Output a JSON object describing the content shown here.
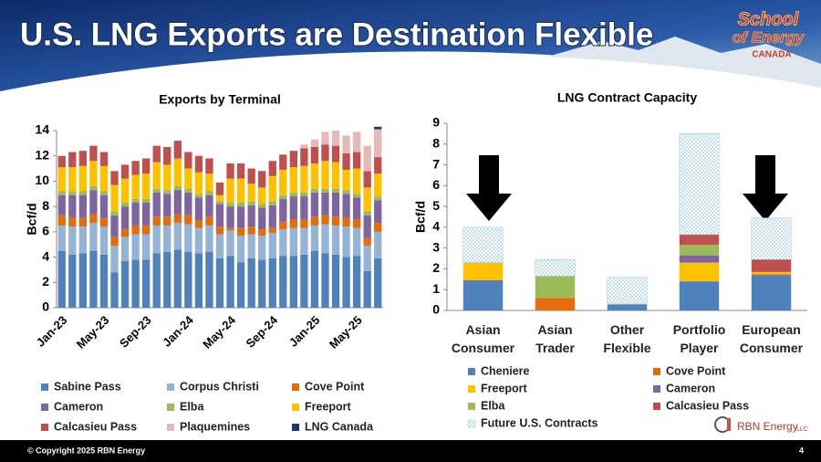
{
  "title": "U.S. LNG Exports are Destination Flexible",
  "logo": {
    "line1": "School",
    "line2": "of Energy",
    "line3": "CANADA"
  },
  "brand": {
    "name": "RBN Energy",
    "suffix": "LLC"
  },
  "footer": {
    "copyright": "© Copyright 2025 RBN Energy",
    "page": "4"
  },
  "chart_data": [
    {
      "type": "stacked_bar",
      "title": "Exports by Terminal",
      "y_label": "Bcf/d",
      "categories": [
        "Jan-23",
        null,
        null,
        null,
        "May-23",
        null,
        null,
        null,
        "Sep-23",
        null,
        null,
        null,
        "Jan-24",
        null,
        null,
        null,
        "May-24",
        null,
        null,
        null,
        "Sep-24",
        null,
        null,
        null,
        "Jan-25",
        null,
        null,
        null,
        "May-25",
        null,
        null
      ],
      "ylim": [
        0,
        14
      ],
      "yticks": [
        0,
        2,
        4,
        6,
        8,
        10,
        12,
        14
      ],
      "grid": false,
      "series": [
        {
          "name": "Sabine Pass",
          "color": "#4f81bd",
          "values": [
            4.5,
            4.2,
            4.3,
            4.5,
            4.2,
            2.8,
            3.7,
            3.8,
            3.8,
            4.3,
            4.4,
            4.6,
            4.4,
            4.3,
            4.4,
            3.9,
            4.1,
            3.6,
            3.9,
            3.8,
            3.9,
            4.1,
            4.1,
            4.2,
            4.5,
            4.3,
            4.2,
            4.0,
            4.1,
            2.9,
            3.9
          ]
        },
        {
          "name": "Corpus Christi",
          "color": "#95b3d7",
          "values": [
            2.0,
            2.2,
            2.1,
            2.2,
            2.2,
            2.1,
            1.9,
            2.0,
            2.0,
            2.2,
            2.1,
            2.1,
            2.2,
            2.0,
            2.1,
            1.9,
            2.0,
            2.1,
            1.9,
            1.9,
            2.0,
            2.1,
            2.2,
            2.1,
            2.0,
            2.3,
            2.3,
            2.4,
            2.2,
            2.0,
            2.1
          ]
        },
        {
          "name": "Cove Point",
          "color": "#e46c0a",
          "values": [
            0.8,
            0.7,
            0.7,
            0.7,
            0.7,
            0.7,
            0.6,
            0.7,
            0.7,
            0.7,
            0.7,
            0.7,
            0.7,
            0.6,
            0.7,
            0.6,
            0.2,
            0.6,
            0.6,
            0.5,
            0.4,
            0.6,
            0.7,
            0.7,
            0.7,
            0.7,
            0.7,
            0.7,
            0.7,
            0.6,
            0.7
          ]
        },
        {
          "name": "Cameron",
          "color": "#8064a2",
          "values": [
            1.6,
            1.8,
            1.8,
            1.9,
            1.8,
            1.7,
            1.8,
            1.8,
            1.8,
            1.9,
            1.8,
            1.9,
            1.8,
            1.8,
            1.7,
            1.8,
            1.7,
            1.7,
            1.7,
            1.7,
            1.8,
            1.8,
            1.8,
            1.8,
            1.9,
            1.8,
            1.9,
            1.9,
            1.7,
            1.8,
            1.8
          ]
        },
        {
          "name": "Elba",
          "color": "#9bbb59",
          "values": [
            0.3,
            0.3,
            0.3,
            0.3,
            0.3,
            0.3,
            0.3,
            0.3,
            0.3,
            0.3,
            0.3,
            0.3,
            0.3,
            0.3,
            0.3,
            0.2,
            0.3,
            0.3,
            0.3,
            0.3,
            0.3,
            0.3,
            0.3,
            0.3,
            0.3,
            0.3,
            0.3,
            0.3,
            0.3,
            0.3,
            0.3
          ]
        },
        {
          "name": "Freeport",
          "color": "#ffc000",
          "values": [
            1.9,
            1.9,
            2.0,
            2.0,
            2.0,
            2.1,
            1.9,
            1.9,
            2.0,
            2.1,
            2.0,
            2.2,
            1.6,
            1.7,
            1.4,
            0.5,
            1.9,
            1.9,
            1.4,
            1.3,
            2.0,
            2.0,
            2.0,
            2.1,
            2.0,
            2.2,
            2.1,
            1.6,
            2.0,
            1.9,
            1.8
          ]
        },
        {
          "name": "Calcasieu Pass",
          "color": "#c0504d",
          "values": [
            0.9,
            1.2,
            1.2,
            1.2,
            1.1,
            1.1,
            1.1,
            1.1,
            1.2,
            1.3,
            1.4,
            1.4,
            1.3,
            1.3,
            1.2,
            1.0,
            1.2,
            1.2,
            1.2,
            1.3,
            1.2,
            1.2,
            1.3,
            1.4,
            1.3,
            1.3,
            1.3,
            1.3,
            1.3,
            1.3,
            1.3
          ]
        },
        {
          "name": "Plaquemines",
          "color": "#e6b9b8",
          "values": [
            0,
            0,
            0,
            0,
            0,
            0,
            0,
            0,
            0,
            0,
            0,
            0,
            0,
            0,
            0,
            0,
            0,
            0,
            0,
            0,
            0,
            0,
            0,
            0.3,
            0.6,
            1.0,
            1.2,
            1.4,
            1.6,
            2.0,
            2.2
          ]
        },
        {
          "name": "LNG Canada",
          "color": "#1f3864",
          "values": [
            0,
            0,
            0,
            0,
            0,
            0,
            0,
            0,
            0,
            0,
            0,
            0,
            0,
            0,
            0,
            0,
            0,
            0,
            0,
            0,
            0,
            0,
            0,
            0,
            0,
            0,
            0,
            0,
            0,
            0,
            0.2
          ]
        }
      ]
    },
    {
      "type": "stacked_bar",
      "title": "LNG Contract Capacity",
      "y_label": "Bcf/d",
      "categories": [
        "Asian Consumer",
        "Asian Trader",
        "Other Flexible",
        "Portfolio Player",
        "European Consumer"
      ],
      "ylim": [
        0,
        9
      ],
      "yticks": [
        0,
        1,
        2,
        3,
        4,
        5,
        6,
        7,
        8,
        9
      ],
      "grid": false,
      "series": [
        {
          "name": "Cheniere",
          "color": "#4f81bd",
          "values": [
            1.45,
            0,
            0.3,
            1.4,
            1.7
          ]
        },
        {
          "name": "Cove Point",
          "color": "#e46c0a",
          "values": [
            0,
            0.6,
            0,
            0,
            0.05
          ]
        },
        {
          "name": "Freeport",
          "color": "#ffc000",
          "values": [
            0.85,
            0,
            0,
            0.9,
            0.1
          ]
        },
        {
          "name": "Cameron",
          "color": "#8064a2",
          "values": [
            0,
            0,
            0,
            0.35,
            0
          ]
        },
        {
          "name": "Elba",
          "color": "#9bbb59",
          "values": [
            0,
            1.05,
            0,
            0.5,
            0
          ]
        },
        {
          "name": "Calcasieu Pass",
          "color": "#c0504d",
          "values": [
            0,
            0,
            0,
            0.5,
            0.6
          ]
        },
        {
          "name": "Future U.S. Contracts",
          "color": "#92cddc",
          "fill_style": "dotted",
          "values": [
            1.7,
            0.8,
            1.3,
            4.85,
            2.0
          ]
        }
      ]
    }
  ]
}
